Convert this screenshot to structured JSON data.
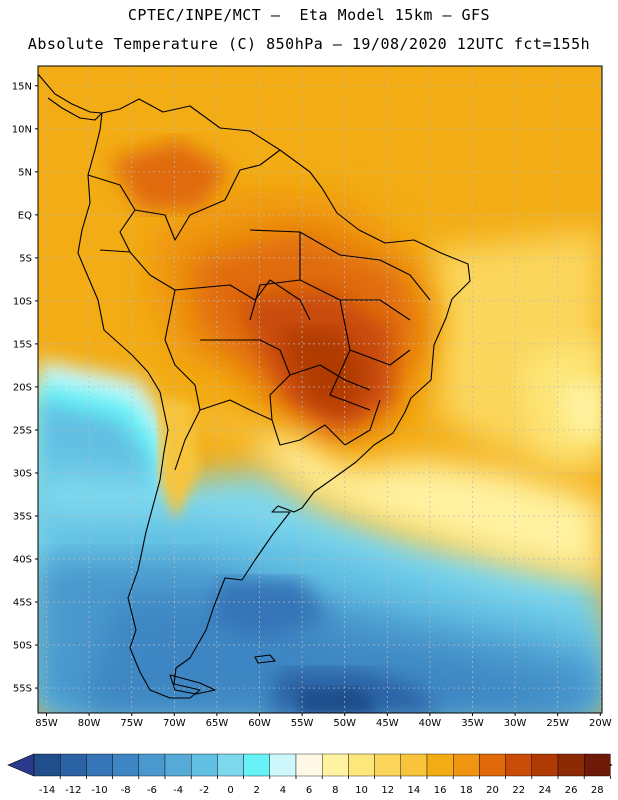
{
  "header": {
    "line1": "CPTEC/INPE/MCT —  Eta Model 15km — GFS",
    "line2": "Absolute Temperature (C) 850hPa — 19/08/2020 12UTC fct=155h"
  },
  "map": {
    "lat_labels": [
      "15N",
      "10N",
      "5N",
      "EQ",
      "5S",
      "10S",
      "15S",
      "20S",
      "25S",
      "30S",
      "35S",
      "40S",
      "45S",
      "50S",
      "55S"
    ],
    "lat_values": [
      15,
      10,
      5,
      0,
      -5,
      -10,
      -15,
      -20,
      -25,
      -30,
      -35,
      -40,
      -45,
      -50,
      -55
    ],
    "lon_labels": [
      "85W",
      "80W",
      "75W",
      "70W",
      "65W",
      "60W",
      "55W",
      "50W",
      "45W",
      "40W",
      "35W",
      "30W",
      "25W",
      "20W"
    ],
    "lon_values": [
      -85,
      -80,
      -75,
      -70,
      -65,
      -60,
      -55,
      -50,
      -45,
      -40,
      -35,
      -30,
      -25,
      -20
    ]
  },
  "colorbar": {
    "labels": [
      "-14",
      "-12",
      "-10",
      "-8",
      "-6",
      "-4",
      "-2",
      "0",
      "2",
      "4",
      "6",
      "8",
      "10",
      "12",
      "14",
      "16",
      "18",
      "20",
      "22",
      "24",
      "26",
      "28"
    ],
    "colors": [
      "#1f4e8a",
      "#2a62a4",
      "#3575b8",
      "#3d86c3",
      "#4a98cd",
      "#56aad8",
      "#62c0e3",
      "#7dd8ee",
      "#66f2f6",
      "#cdf7fb",
      "#fff8e6",
      "#fff2a0",
      "#fde77a",
      "#fbd65b",
      "#f7c43b",
      "#f3ac14",
      "#ef9511",
      "#e06a0a",
      "#c94c08",
      "#b03a06",
      "#8c2a05",
      "#6e1a08"
    ],
    "under_color": "#2b3a8c",
    "over_color": "#700a2a"
  }
}
